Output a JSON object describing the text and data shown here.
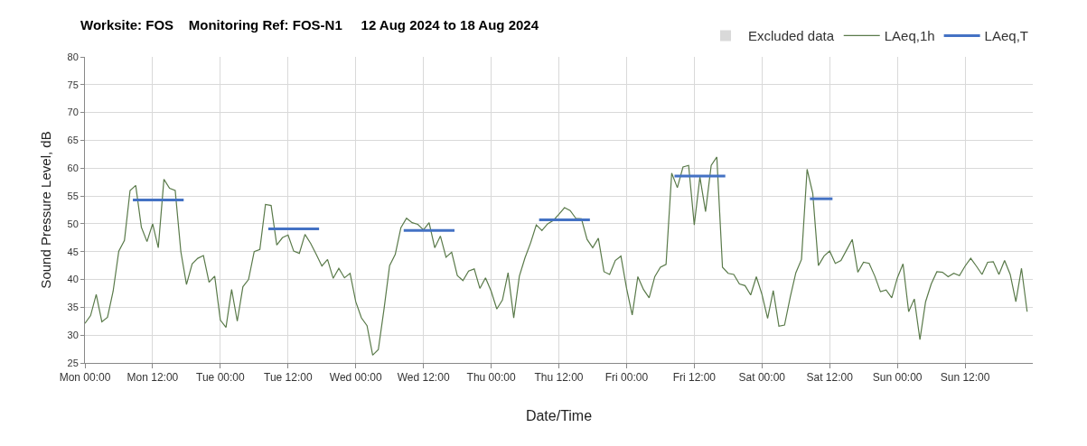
{
  "chart_data": {
    "type": "line",
    "title": "Worksite: FOS    Monitoring Ref: FOS-N1     12 Aug 2024 to 18 Aug 2024",
    "xlabel": "Date/Time",
    "ylabel": "Sound Pressure Level, dB",
    "xlim": [
      "2024-08-12T00:00",
      "2024-08-19T00:00"
    ],
    "xticks": [
      {
        "value": "2024-08-12T00:00",
        "label": "Mon 00:00"
      },
      {
        "value": "2024-08-12T12:00",
        "label": "Mon 12:00"
      },
      {
        "value": "2024-08-13T00:00",
        "label": "Tue 00:00"
      },
      {
        "value": "2024-08-13T12:00",
        "label": "Tue 12:00"
      },
      {
        "value": "2024-08-14T00:00",
        "label": "Wed 00:00"
      },
      {
        "value": "2024-08-14T12:00",
        "label": "Wed 12:00"
      },
      {
        "value": "2024-08-15T00:00",
        "label": "Thu 00:00"
      },
      {
        "value": "2024-08-15T12:00",
        "label": "Thu 12:00"
      },
      {
        "value": "2024-08-16T00:00",
        "label": "Fri 00:00"
      },
      {
        "value": "2024-08-16T12:00",
        "label": "Fri 12:00"
      },
      {
        "value": "2024-08-17T00:00",
        "label": "Sat 00:00"
      },
      {
        "value": "2024-08-17T12:00",
        "label": "Sat 12:00"
      },
      {
        "value": "2024-08-18T00:00",
        "label": "Sun 00:00"
      },
      {
        "value": "2024-08-18T12:00",
        "label": "Sun 12:00"
      }
    ],
    "ylim": [
      25,
      80
    ],
    "yticks": [
      25,
      30,
      35,
      40,
      45,
      50,
      55,
      60,
      65,
      70,
      75,
      80
    ],
    "grid": true,
    "legend": "top right",
    "marker": "none",
    "line_style": "solid",
    "x": [
      "2024-08-12T00:00",
      "2024-08-12T01:00",
      "2024-08-12T02:00",
      "2024-08-12T03:00",
      "2024-08-12T04:00",
      "2024-08-12T05:00",
      "2024-08-12T06:00",
      "2024-08-12T07:00",
      "2024-08-12T08:00",
      "2024-08-12T09:00",
      "2024-08-12T10:00",
      "2024-08-12T11:00",
      "2024-08-12T12:00",
      "2024-08-12T13:00",
      "2024-08-12T14:00",
      "2024-08-12T15:00",
      "2024-08-12T16:00",
      "2024-08-12T17:00",
      "2024-08-12T18:00",
      "2024-08-12T19:00",
      "2024-08-12T20:00",
      "2024-08-12T21:00",
      "2024-08-12T22:00",
      "2024-08-12T23:00",
      "2024-08-13T00:00",
      "2024-08-13T01:00",
      "2024-08-13T02:00",
      "2024-08-13T03:00",
      "2024-08-13T04:00",
      "2024-08-13T05:00",
      "2024-08-13T06:00",
      "2024-08-13T07:00",
      "2024-08-13T08:00",
      "2024-08-13T09:00",
      "2024-08-13T10:00",
      "2024-08-13T11:00",
      "2024-08-13T12:00",
      "2024-08-13T13:00",
      "2024-08-13T14:00",
      "2024-08-13T15:00",
      "2024-08-13T16:00",
      "2024-08-13T17:00",
      "2024-08-13T18:00",
      "2024-08-13T19:00",
      "2024-08-13T20:00",
      "2024-08-13T21:00",
      "2024-08-13T22:00",
      "2024-08-13T23:00",
      "2024-08-14T00:00",
      "2024-08-14T01:00",
      "2024-08-14T02:00",
      "2024-08-14T03:00",
      "2024-08-14T04:00",
      "2024-08-14T05:00",
      "2024-08-14T06:00",
      "2024-08-14T07:00",
      "2024-08-14T08:00",
      "2024-08-14T09:00",
      "2024-08-14T10:00",
      "2024-08-14T11:00",
      "2024-08-14T12:00",
      "2024-08-14T13:00",
      "2024-08-14T14:00",
      "2024-08-14T15:00",
      "2024-08-14T16:00",
      "2024-08-14T17:00",
      "2024-08-14T18:00",
      "2024-08-14T19:00",
      "2024-08-14T20:00",
      "2024-08-14T21:00",
      "2024-08-14T22:00",
      "2024-08-14T23:00",
      "2024-08-15T00:00",
      "2024-08-15T01:00",
      "2024-08-15T02:00",
      "2024-08-15T03:00",
      "2024-08-15T04:00",
      "2024-08-15T05:00",
      "2024-08-15T06:00",
      "2024-08-15T07:00",
      "2024-08-15T08:00",
      "2024-08-15T09:00",
      "2024-08-15T10:00",
      "2024-08-15T11:00",
      "2024-08-15T12:00",
      "2024-08-15T13:00",
      "2024-08-15T14:00",
      "2024-08-15T15:00",
      "2024-08-15T16:00",
      "2024-08-15T17:00",
      "2024-08-15T18:00",
      "2024-08-15T19:00",
      "2024-08-15T20:00",
      "2024-08-15T21:00",
      "2024-08-15T22:00",
      "2024-08-15T23:00",
      "2024-08-16T00:00",
      "2024-08-16T01:00",
      "2024-08-16T02:00",
      "2024-08-16T03:00",
      "2024-08-16T04:00",
      "2024-08-16T05:00",
      "2024-08-16T06:00",
      "2024-08-16T07:00",
      "2024-08-16T08:00",
      "2024-08-16T09:00",
      "2024-08-16T10:00",
      "2024-08-16T11:00",
      "2024-08-16T12:00",
      "2024-08-16T13:00",
      "2024-08-16T14:00",
      "2024-08-16T15:00",
      "2024-08-16T16:00",
      "2024-08-16T17:00",
      "2024-08-16T18:00",
      "2024-08-16T19:00",
      "2024-08-16T20:00",
      "2024-08-16T21:00",
      "2024-08-16T22:00",
      "2024-08-16T23:00",
      "2024-08-17T00:00",
      "2024-08-17T01:00",
      "2024-08-17T02:00",
      "2024-08-17T03:00",
      "2024-08-17T04:00",
      "2024-08-17T05:00",
      "2024-08-17T06:00",
      "2024-08-17T07:00",
      "2024-08-17T08:00",
      "2024-08-17T09:00",
      "2024-08-17T10:00",
      "2024-08-17T11:00",
      "2024-08-17T12:00",
      "2024-08-17T13:00",
      "2024-08-17T14:00",
      "2024-08-17T15:00",
      "2024-08-17T16:00",
      "2024-08-17T17:00",
      "2024-08-17T18:00",
      "2024-08-17T19:00",
      "2024-08-17T20:00",
      "2024-08-17T21:00",
      "2024-08-17T22:00",
      "2024-08-17T23:00",
      "2024-08-18T00:00",
      "2024-08-18T01:00",
      "2024-08-18T02:00",
      "2024-08-18T03:00",
      "2024-08-18T04:00",
      "2024-08-18T05:00",
      "2024-08-18T06:00",
      "2024-08-18T07:00",
      "2024-08-18T08:00",
      "2024-08-18T09:00",
      "2024-08-18T10:00",
      "2024-08-18T11:00",
      "2024-08-18T12:00",
      "2024-08-18T13:00",
      "2024-08-18T14:00",
      "2024-08-18T15:00",
      "2024-08-18T16:00",
      "2024-08-18T17:00",
      "2024-08-18T18:00",
      "2024-08-18T19:00",
      "2024-08-18T20:00",
      "2024-08-18T21:00",
      "2024-08-18T22:00",
      "2024-08-18T23:00"
    ],
    "series": [
      {
        "name": "Excluded data",
        "type": "bar",
        "color": "#d9d9d9",
        "values": [
          null,
          null,
          null,
          null,
          null,
          null,
          null,
          null,
          null,
          null,
          null,
          null,
          null,
          null,
          null,
          null,
          null,
          null,
          null,
          null,
          null,
          null,
          null,
          null,
          null,
          null,
          null,
          null,
          null,
          null,
          null,
          null,
          null,
          null,
          null,
          null,
          null,
          null,
          null,
          null,
          null,
          null,
          null,
          null,
          null,
          null,
          null,
          null,
          null,
          null,
          null,
          null,
          null,
          null,
          null,
          null,
          null,
          null,
          null,
          null,
          null,
          null,
          null,
          null,
          null,
          null,
          null,
          null,
          null,
          null,
          null,
          null,
          null,
          null,
          null,
          null,
          null,
          null,
          null,
          null,
          null,
          null,
          null,
          null,
          null,
          null,
          null,
          null,
          null,
          null,
          null,
          null,
          null,
          null,
          null,
          null,
          null,
          null,
          null,
          null,
          null,
          null,
          null,
          null,
          null,
          null,
          null,
          null,
          null,
          null,
          null,
          null,
          null,
          null,
          null,
          null,
          null,
          null,
          null,
          null,
          null,
          null,
          null,
          null,
          null,
          null,
          null,
          null,
          null,
          null,
          null,
          null,
          null,
          null,
          null,
          null,
          null,
          null,
          null,
          null,
          null,
          null,
          null,
          null,
          null,
          null,
          null,
          null,
          null,
          null,
          null,
          null,
          null,
          null,
          null,
          null,
          null,
          null,
          null,
          null,
          null,
          null,
          null,
          null,
          null,
          null,
          null,
          null
        ]
      },
      {
        "name": "LAeq,1h",
        "color": "#5a7a4a",
        "values": [
          32.1,
          33.5,
          37.3,
          32.4,
          33.2,
          37.9,
          45.1,
          47.0,
          56.0,
          56.9,
          49.4,
          46.8,
          50.0,
          45.7,
          58.0,
          56.4,
          56.0,
          45.0,
          39.1,
          42.8,
          43.8,
          44.3,
          39.5,
          40.6,
          32.7,
          31.4,
          38.2,
          32.5,
          38.7,
          40.0,
          45.0,
          45.4,
          53.5,
          53.3,
          46.2,
          47.5,
          48.0,
          45.1,
          44.7,
          48.1,
          46.5,
          44.5,
          42.4,
          43.6,
          40.2,
          42.0,
          40.3,
          41.1,
          36.0,
          33.1,
          31.7,
          26.4,
          27.4,
          34.6,
          42.5,
          44.5,
          49.3,
          51.0,
          50.2,
          49.9,
          48.9,
          50.2,
          45.7,
          47.8,
          44.0,
          44.9,
          40.7,
          39.8,
          41.5,
          41.9,
          38.4,
          40.3,
          37.9,
          34.7,
          36.3,
          41.2,
          33.1,
          40.6,
          43.9,
          46.6,
          49.8,
          48.8,
          50.0,
          50.6,
          51.7,
          52.9,
          52.4,
          51.0,
          50.9,
          47.2,
          45.7,
          47.4,
          41.4,
          40.9,
          43.4,
          44.2,
          38.4,
          33.6,
          40.5,
          38.2,
          36.7,
          40.5,
          42.2,
          42.7,
          59.1,
          56.5,
          60.2,
          60.5,
          49.8,
          58.4,
          52.2,
          60.5,
          62.0,
          42.2,
          41.1,
          40.9,
          39.2,
          38.9,
          37.2,
          40.5,
          37.3,
          33.0,
          38.0,
          31.6,
          31.8,
          36.8,
          41.2,
          43.6,
          59.8,
          55.5,
          42.5,
          44.2,
          45.1,
          42.9,
          43.4,
          45.3,
          47.2,
          41.3,
          43.1,
          42.9,
          40.6,
          37.8,
          38.1,
          36.7,
          40.3,
          42.8,
          34.2,
          36.5,
          29.2,
          36.0,
          39.2,
          41.4,
          41.3,
          40.5,
          41.1,
          40.7,
          42.4,
          43.8,
          42.4,
          40.9,
          43.1,
          43.2,
          40.9,
          43.4,
          40.9,
          36.0,
          42.0,
          34.2
        ]
      },
      {
        "name": "LAeq,T",
        "color": "#4472c4",
        "x": [
          "2024-08-12T08:30",
          "2024-08-12T17:30",
          null,
          "2024-08-13T08:30",
          "2024-08-13T17:30",
          null,
          "2024-08-14T08:30",
          "2024-08-14T17:30",
          null,
          "2024-08-15T08:30",
          "2024-08-15T17:30",
          null,
          "2024-08-16T08:30",
          "2024-08-16T17:30",
          null,
          "2024-08-17T08:30",
          "2024-08-17T12:30"
        ],
        "values": [
          54.3,
          54.3,
          null,
          49.1,
          49.1,
          null,
          48.8,
          48.8,
          null,
          50.7,
          50.7,
          null,
          58.6,
          58.6,
          null,
          54.5,
          54.5
        ]
      }
    ]
  }
}
